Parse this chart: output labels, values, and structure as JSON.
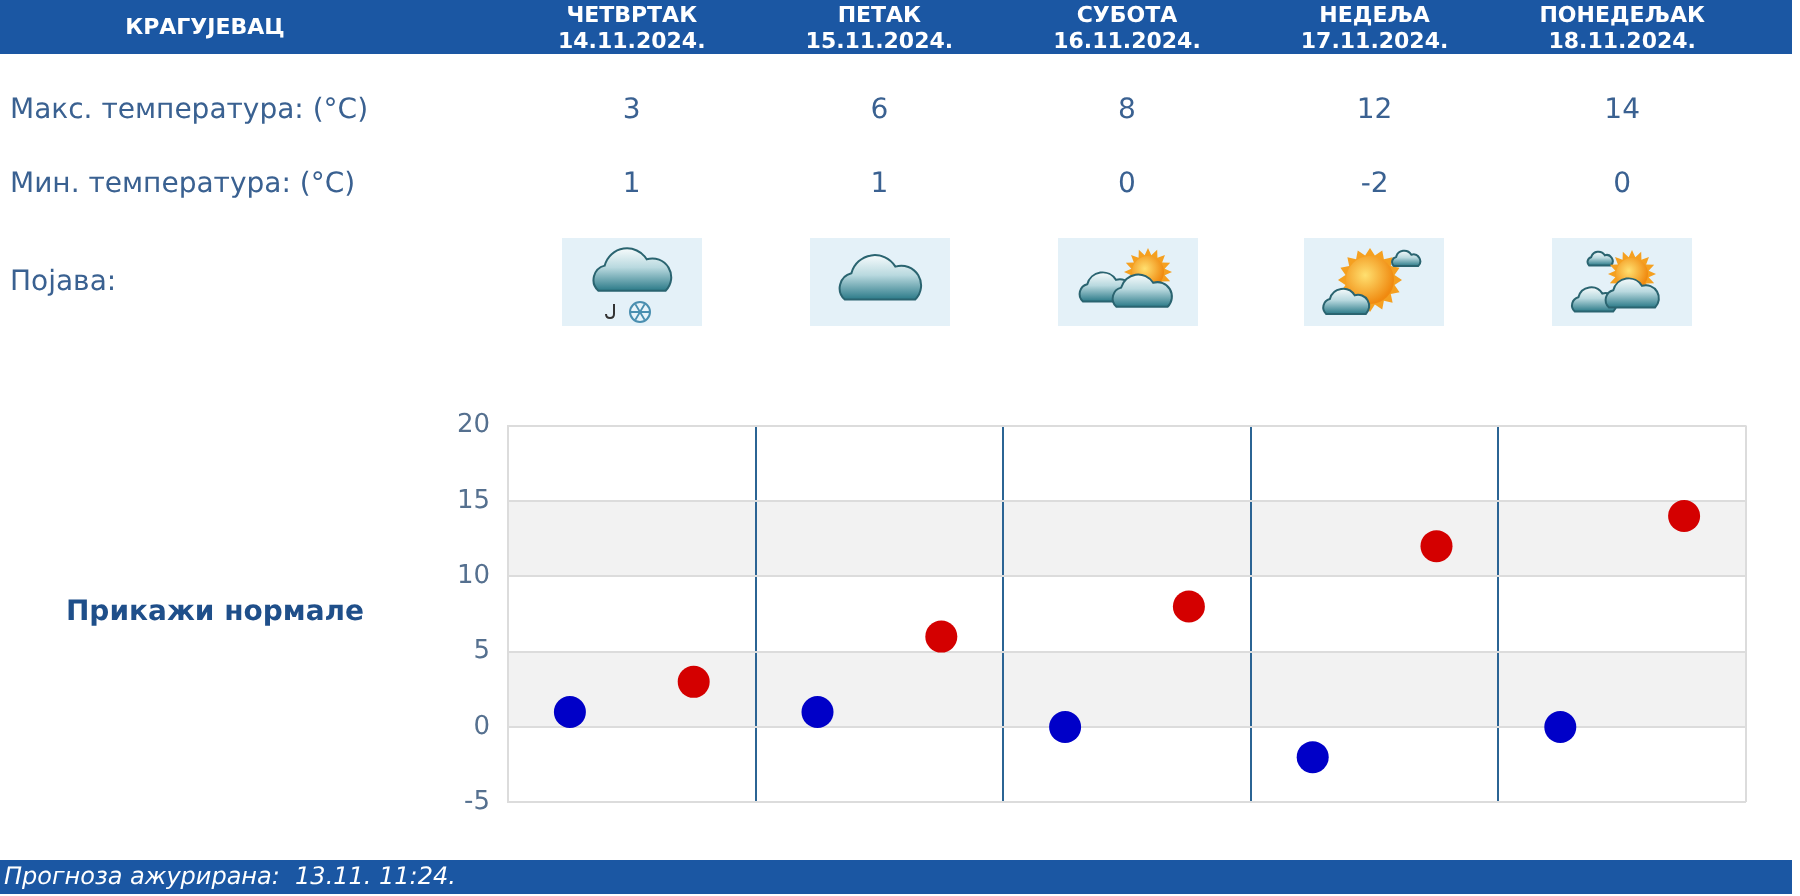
{
  "chart_data": {
    "type": "scatter",
    "title": "КРАГУЈЕВАЦ",
    "categories": [
      null,
      null,
      null,
      null,
      null
    ],
    "series": [
      {
        "color": "#d40000",
        "values": [
          3,
          6,
          8,
          12,
          14
        ]
      },
      {
        "color": "#0000c8",
        "values": [
          1,
          1,
          0,
          -2,
          0
        ]
      }
    ],
    "ylim": [
      -5,
      20
    ],
    "yticks": [
      -5,
      0,
      5,
      10,
      15,
      20
    ],
    "grid": true,
    "marker": "circle",
    "data_labels": true,
    "bands": [
      {
        "axis": "y",
        "from": 0,
        "to": 5,
        "color": "#f2f2f2"
      },
      {
        "axis": "y",
        "from": 10,
        "to": 15,
        "color": "#f2f2f2"
      }
    ],
    "annotations": [
      "ЧЕТВРТАК 14.11.2024.",
      "ПЕТАК 15.11.2024.",
      "СУБОТА 16.11.2024.",
      "НЕДЕЉА 17.11.2024.",
      "ПОНЕДЕЉАК 18.11.2024.",
      "Макс. температура: (°C)",
      "Мин. температура: (°C)",
      "Појава:",
      "Прикажи нормале",
      "Прогноза ажурирана:  13.11. 11:24."
    ]
  }
}
